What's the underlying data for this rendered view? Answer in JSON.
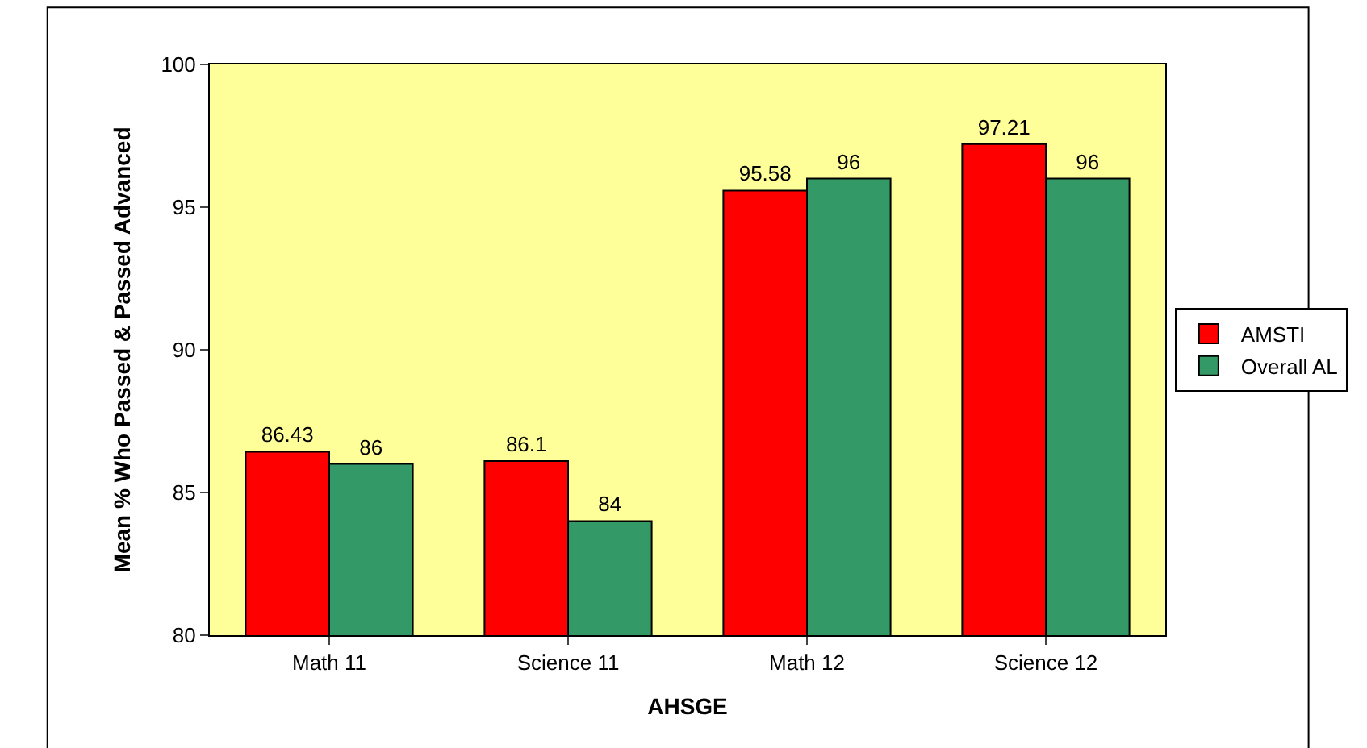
{
  "chart_data": {
    "type": "bar",
    "xlabel": "AHSGE",
    "ylabel": "Mean % Who Passed & Passed Advanced",
    "categories": [
      "Math 11",
      "Science 11",
      "Math 12",
      "Science 12"
    ],
    "series": [
      {
        "name": "AMSTI",
        "color": "#ff0000",
        "values": [
          86.43,
          86.1,
          95.58,
          97.21
        ]
      },
      {
        "name": "Overall AL",
        "color": "#339966",
        "values": [
          86,
          84,
          96,
          96
        ]
      }
    ],
    "ylim": [
      80,
      100
    ],
    "yticks": [
      80,
      85,
      90,
      95,
      100
    ],
    "grid": false,
    "legend": "right",
    "data_labels": true
  }
}
